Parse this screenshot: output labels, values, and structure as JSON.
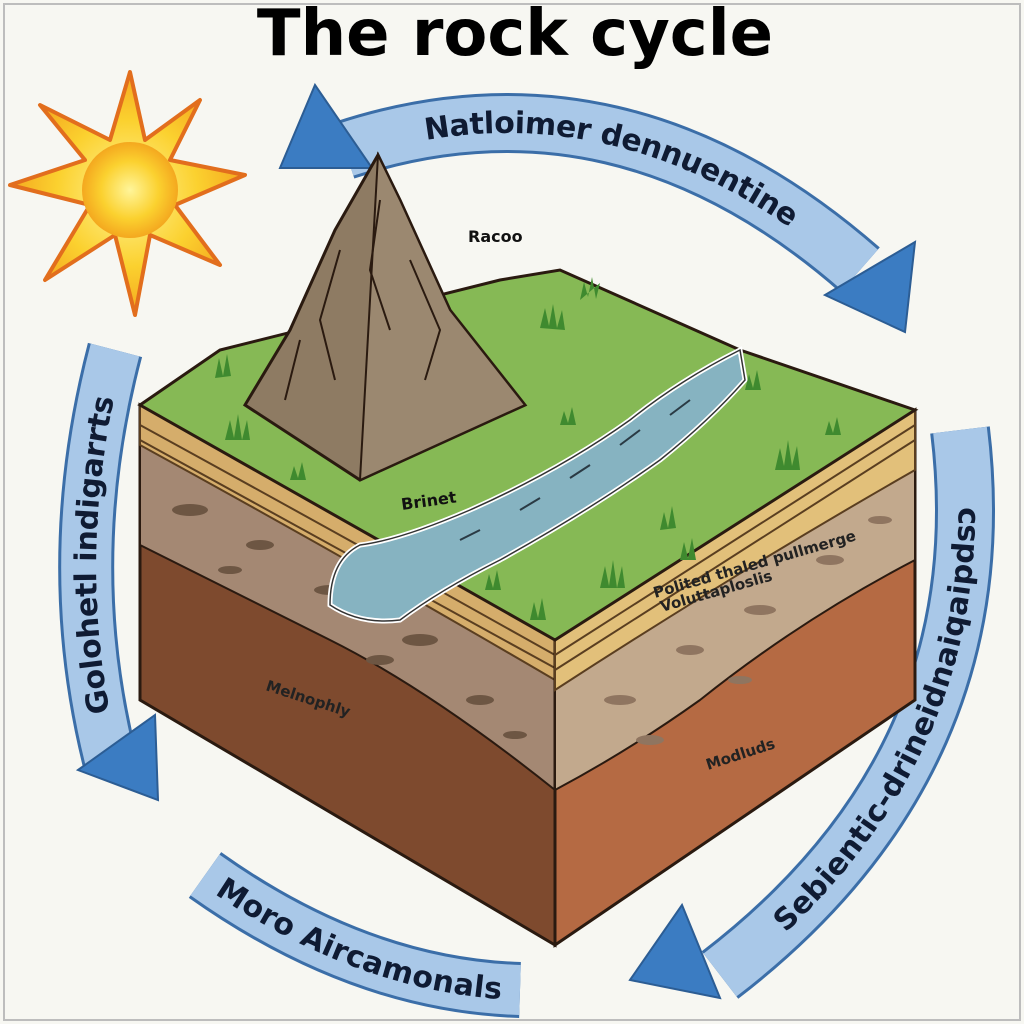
{
  "title": "The rock cycle",
  "arrows": {
    "top": "Natloimer dennuentine",
    "left": "Golohetl indigarrts",
    "right": "Cspdiaipdiaieudnrid-ɔitneiqəS",
    "right_display": "Sebientic-drineidnaiqaipdsɔ",
    "bottom_left": "Moro Aircamonals"
  },
  "labels": {
    "mountain": "Racoo",
    "river": "Brinet",
    "layer_band_1": "Polited thaled pullmerge",
    "layer_band_2": "Voluttaploslis",
    "front_left": "Melnophly",
    "front_right": "Modluds"
  },
  "colors": {
    "arrow_fill": "#a9c8e8",
    "arrow_head": "#3b7cc2",
    "grass": "#86b955",
    "water": "#86b3c1",
    "rock": "#8e7b63",
    "soil_dark": "#7e4a2e",
    "soil_light": "#b56a43",
    "sun": "#f9c62d"
  },
  "icons": [
    "sun-icon"
  ]
}
